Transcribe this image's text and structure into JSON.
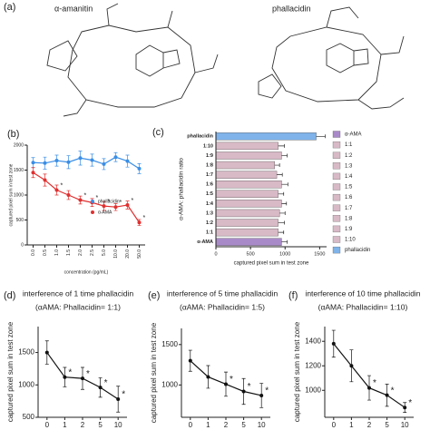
{
  "figure": {
    "panel_a": {
      "label": "(a)",
      "names": [
        "α-amanitin",
        "phallacidin"
      ]
    }
  },
  "chart_data": [
    {
      "type": "line",
      "panel": "(b)",
      "ylabel": "captured pixel sum in test zone",
      "xlabel": "concentration (pg/mL)",
      "categories": [
        "0.0",
        "0.5",
        "1.0",
        "1.5",
        "2.0",
        "2.5",
        "5.0",
        "10.0",
        "20.0",
        "50.0"
      ],
      "ylim": [
        0,
        2000
      ],
      "yticks": [
        0,
        500,
        1000,
        1500,
        2000
      ],
      "series": [
        {
          "name": "phallacidin",
          "color": "#3a8ee6",
          "values": [
            1650,
            1640,
            1690,
            1660,
            1740,
            1700,
            1620,
            1760,
            1680,
            1530
          ],
          "errors": [
            100,
            120,
            110,
            130,
            140,
            120,
            110,
            90,
            120,
            100
          ]
        },
        {
          "name": "α-AMA",
          "color": "#e03030",
          "values": [
            1450,
            1300,
            1100,
            1000,
            900,
            850,
            780,
            760,
            800,
            450
          ],
          "errors": [
            100,
            120,
            100,
            90,
            80,
            80,
            90,
            70,
            80,
            60
          ],
          "annotations": [
            {
              "index": 2,
              "text": "*"
            },
            {
              "index": 4,
              "text": "*"
            },
            {
              "index": 5,
              "text": "*"
            },
            {
              "index": 6,
              "text": "*"
            },
            {
              "index": 7,
              "text": "*"
            },
            {
              "index": 8,
              "text": "*"
            },
            {
              "index": 9,
              "text": "*"
            }
          ]
        }
      ],
      "legend": "right"
    },
    {
      "type": "hbar",
      "panel": "(c)",
      "ylabel": "α-AMA: phallacidin ratio",
      "xlabel": "captured pixel sum in test zone",
      "categories": [
        "phallacidin",
        "1:10",
        "1:9",
        "1:8",
        "1:7",
        "1:6",
        "1:5",
        "1:4",
        "1:3",
        "1:2",
        "1:1",
        "α-AMA"
      ],
      "values": [
        1450,
        900,
        950,
        850,
        880,
        950,
        900,
        950,
        920,
        900,
        900,
        950
      ],
      "errors": [
        130,
        90,
        80,
        70,
        80,
        90,
        80,
        70,
        80,
        90,
        80,
        80
      ],
      "colors": [
        "#7fb3ea",
        "#d8b9c6",
        "#d8b9c6",
        "#d8b9c6",
        "#d8b9c6",
        "#d8b9c6",
        "#d8b9c6",
        "#d8b9c6",
        "#d8b9c6",
        "#d8b9c6",
        "#d8b9c6",
        "#a98ac9"
      ],
      "xlim": [
        0,
        1600
      ],
      "xticks": [
        0,
        500,
        1000,
        1500
      ],
      "legend_entries": [
        {
          "name": "α-AMA",
          "color": "#a98ac9"
        },
        {
          "name": "1:1",
          "color": "#d8b9c6"
        },
        {
          "name": "1:2",
          "color": "#d8b9c6"
        },
        {
          "name": "1:3",
          "color": "#d8b9c6"
        },
        {
          "name": "1:4",
          "color": "#d8b9c6"
        },
        {
          "name": "1:5",
          "color": "#d8b9c6"
        },
        {
          "name": "1:6",
          "color": "#d8b9c6"
        },
        {
          "name": "1:7",
          "color": "#d8b9c6"
        },
        {
          "name": "1:8",
          "color": "#d8b9c6"
        },
        {
          "name": "1:9",
          "color": "#d8b9c6"
        },
        {
          "name": "1:10",
          "color": "#d8b9c6"
        },
        {
          "name": "phallacidin",
          "color": "#7fb3ea"
        }
      ]
    },
    {
      "type": "line",
      "panel": "(d)",
      "title": "interference of 1 time phallacidin",
      "subtitle": "(αAMA: Phallacidin= 1:1)",
      "ylabel": "captured pixel sum in test zone",
      "categories": [
        "0",
        "1",
        "2",
        "5",
        "10"
      ],
      "ylim": [
        500,
        1900
      ],
      "yticks": [
        500,
        1000,
        1500
      ],
      "series": [
        {
          "name": null,
          "color": "#111",
          "values": [
            1500,
            1120,
            1100,
            960,
            780
          ],
          "errors": [
            180,
            150,
            170,
            150,
            200
          ],
          "annotations": [
            {
              "index": 1,
              "text": "*"
            },
            {
              "index": 2,
              "text": "*"
            },
            {
              "index": 3,
              "text": "*"
            },
            {
              "index": 4,
              "text": "*"
            }
          ]
        }
      ]
    },
    {
      "type": "line",
      "panel": "(e)",
      "title": "interference of 5 time phallacidin",
      "subtitle": "(αAMA: Phallacidin= 1:5)",
      "ylabel": "captured pixel sum in test zone",
      "categories": [
        "0",
        "1",
        "2",
        "5",
        "10"
      ],
      "ylim": [
        600,
        1700
      ],
      "yticks": [
        1000,
        1500
      ],
      "series": [
        {
          "name": null,
          "color": "#111",
          "values": [
            1300,
            1100,
            1010,
            920,
            870
          ],
          "errors": [
            130,
            140,
            150,
            160,
            150
          ],
          "annotations": [
            {
              "index": 2,
              "text": "*"
            },
            {
              "index": 3,
              "text": "*"
            },
            {
              "index": 4,
              "text": "*"
            }
          ]
        }
      ]
    },
    {
      "type": "line",
      "panel": "(f)",
      "title": "interference of 10 time phallacidin",
      "subtitle": "(αAMA: Phallacidin= 1:10)",
      "ylabel": "captured pixel sum in test zone",
      "categories": [
        "0",
        "1",
        "2",
        "5",
        "10"
      ],
      "ylim": [
        780,
        1520
      ],
      "yticks": [
        1000,
        1200,
        1400
      ],
      "series": [
        {
          "name": null,
          "color": "#111",
          "values": [
            1380,
            1200,
            1020,
            960,
            860
          ],
          "errors": [
            110,
            130,
            100,
            90,
            40
          ],
          "annotations": [
            {
              "index": 2,
              "text": "*"
            },
            {
              "index": 3,
              "text": "*"
            },
            {
              "index": 4,
              "text": "*"
            }
          ]
        }
      ]
    }
  ]
}
